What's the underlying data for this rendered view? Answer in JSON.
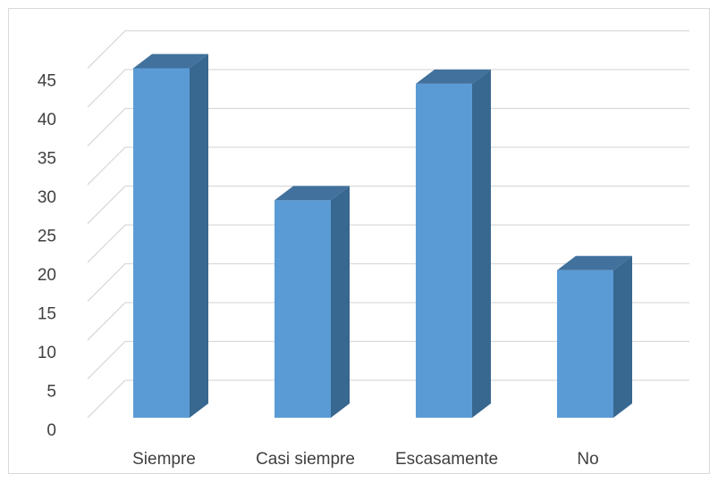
{
  "chart_data": {
    "type": "bar",
    "title": "",
    "xlabel": "",
    "ylabel": "",
    "categories": [
      "Siempre",
      "Casi siempre",
      "Escasamente",
      "No"
    ],
    "values": [
      45,
      28,
      43,
      19
    ],
    "ylim": [
      0,
      45
    ],
    "yticks": [
      "0",
      "5",
      "10",
      "15",
      "20",
      "25",
      "30",
      "35",
      "40",
      "45"
    ],
    "grid": true,
    "legend": "none",
    "colors": {
      "bar_front": "#5b9bd5",
      "bar_side": "#386790",
      "bar_top": "#41719c",
      "gridline": "#d9d9d9",
      "text": "#404040"
    }
  }
}
